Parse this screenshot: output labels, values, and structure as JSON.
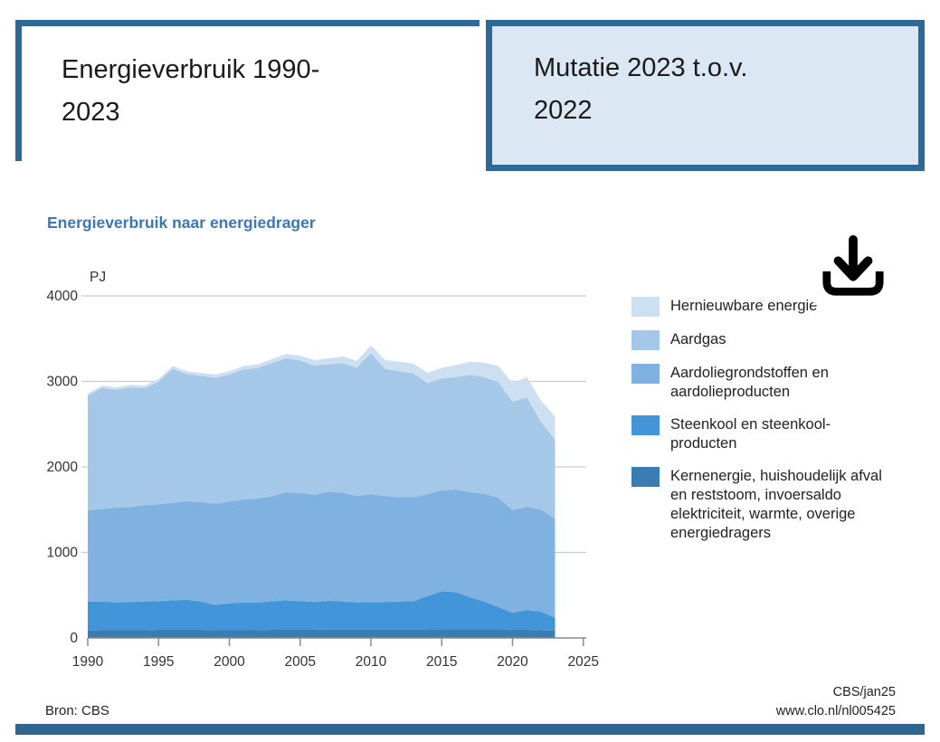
{
  "tabs": [
    {
      "label": "Energieverbruik 1990-2023",
      "active": true
    },
    {
      "label": "Mutatie 2023 t.o.v. 2022",
      "active": false
    }
  ],
  "chart": {
    "title": "Energieverbruik naar energiedrager"
  },
  "chart_data": {
    "type": "area",
    "stacked": true,
    "title": "Energieverbruik naar energiedrager",
    "xlabel": "",
    "ylabel": "PJ",
    "ylim": [
      0,
      4000
    ],
    "yticks": [
      0,
      1000,
      2000,
      3000,
      4000
    ],
    "xticks": [
      1990,
      1995,
      2000,
      2005,
      2010,
      2015,
      2020,
      2025
    ],
    "xlim": [
      1990,
      2025
    ],
    "grid": true,
    "legend_position": "right",
    "x": [
      1990,
      1991,
      1992,
      1993,
      1994,
      1995,
      1996,
      1997,
      1998,
      1999,
      2000,
      2001,
      2002,
      2003,
      2004,
      2005,
      2006,
      2007,
      2008,
      2009,
      2010,
      2011,
      2012,
      2013,
      2014,
      2015,
      2016,
      2017,
      2018,
      2019,
      2020,
      2021,
      2022,
      2023
    ],
    "series": [
      {
        "name": "Kernenergie, huishoudelijk afval en reststoom, invoersaldo elektriciteit, warmte, overige energiedragers",
        "color": "#3a7db3",
        "values": [
          85,
          90,
          90,
          90,
          90,
          95,
          95,
          95,
          95,
          90,
          90,
          90,
          90,
          95,
          95,
          95,
          95,
          100,
          100,
          100,
          100,
          100,
          100,
          100,
          100,
          105,
          105,
          105,
          105,
          105,
          95,
          95,
          90,
          85
        ]
      },
      {
        "name": "Steenkool en steenkoolproducten",
        "color": "#4195d8",
        "values": [
          340,
          335,
          325,
          330,
          335,
          335,
          345,
          350,
          330,
          295,
          315,
          325,
          325,
          335,
          345,
          335,
          325,
          335,
          325,
          315,
          320,
          320,
          325,
          330,
          390,
          440,
          430,
          370,
          320,
          255,
          200,
          230,
          220,
          150
        ]
      },
      {
        "name": "Aardoliegrondstoffen en aardolieproducten",
        "color": "#7fb2e1",
        "values": [
          1070,
          1080,
          1110,
          1110,
          1125,
          1135,
          1140,
          1155,
          1165,
          1185,
          1190,
          1205,
          1215,
          1225,
          1265,
          1265,
          1255,
          1275,
          1275,
          1245,
          1260,
          1240,
          1220,
          1215,
          1190,
          1180,
          1200,
          1230,
          1260,
          1280,
          1200,
          1210,
          1190,
          1160
        ]
      },
      {
        "name": "Aardgas",
        "color": "#a5c8e9",
        "values": [
          1340,
          1420,
          1377,
          1400,
          1370,
          1433,
          1568,
          1485,
          1475,
          1472,
          1485,
          1520,
          1528,
          1560,
          1567,
          1550,
          1510,
          1490,
          1515,
          1500,
          1650,
          1485,
          1475,
          1450,
          1300,
          1310,
          1315,
          1370,
          1365,
          1350,
          1270,
          1280,
          1030,
          925
        ]
      },
      {
        "name": "Hernieuwbare energie",
        "color": "#cde0f2",
        "values": [
          25,
          25,
          28,
          30,
          30,
          32,
          32,
          35,
          35,
          38,
          40,
          40,
          42,
          45,
          48,
          55,
          65,
          70,
          75,
          80,
          90,
          105,
          110,
          115,
          120,
          125,
          140,
          155,
          170,
          190,
          215,
          235,
          250,
          270
        ]
      }
    ]
  },
  "legend": {
    "items": [
      {
        "label": "Hernieuwbare energie",
        "color": "#cde0f2"
      },
      {
        "label": "Aardgas",
        "color": "#a5c8e9"
      },
      {
        "label": "Aardoliegrondstoffen en\naardolieproducten",
        "color": "#7fb2e1"
      },
      {
        "label": "Steenkool en steenkool-\nproducten",
        "color": "#4195d8"
      },
      {
        "label": "Kernenergie, huishoudelijk afval\nen reststoom, invoersaldo\nelektriciteit, warmte, overige\nenergiedragers",
        "color": "#3a7db3"
      }
    ]
  },
  "icons": {
    "download": "download-icon"
  },
  "footer": {
    "source": "Bron: CBS",
    "credit": "CBS/jan25",
    "url": "www.clo.nl/nl005425"
  },
  "colors": {
    "accent_border": "#2d6896",
    "inactive_tab_fill": "#dbe8f4",
    "title_blue": "#3a76b8",
    "bottom_bar": "#2d6690",
    "gridline": "#cccccc",
    "axis": "#8a8a8a"
  }
}
